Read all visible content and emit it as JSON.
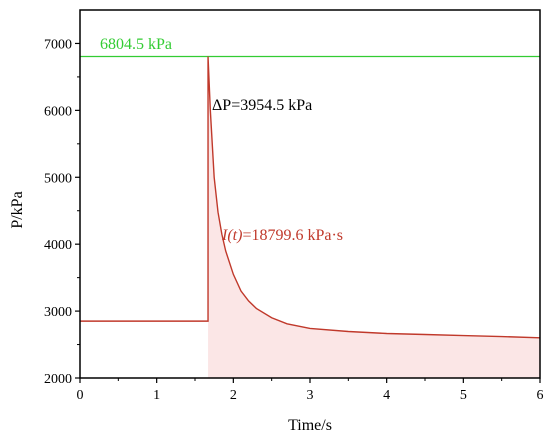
{
  "chart_data": {
    "type": "line",
    "xlabel": "Time/s",
    "ylabel": "P/kPa",
    "xlim": [
      0,
      6
    ],
    "ylim": [
      2000,
      7500
    ],
    "x_ticks": [
      0,
      1,
      2,
      3,
      4,
      5,
      6
    ],
    "y_ticks": [
      2000,
      3000,
      4000,
      5000,
      6000,
      7000
    ],
    "grid": false,
    "reference_line": {
      "y": 6804.5,
      "label": "6804.5 kPa",
      "color": "#33cc33"
    },
    "annotations": {
      "delta_p": "ΔP=3954.5 kPa",
      "impulse_prefix": "I(t)",
      "impulse_value": "=18799.6 kPa·s"
    },
    "series": [
      {
        "color": "#c0392b",
        "shade_color": "#f4b6b6",
        "x": [
          0,
          0.5,
          1.0,
          1.5,
          1.67,
          1.67,
          1.7,
          1.75,
          1.8,
          1.85,
          1.9,
          2.0,
          2.1,
          2.2,
          2.3,
          2.5,
          2.7,
          3.0,
          3.5,
          4.0,
          4.5,
          5.0,
          5.5,
          6.0
        ],
        "y": [
          2850,
          2850,
          2850,
          2850,
          2850,
          6804.5,
          6000,
          5000,
          4480,
          4150,
          3900,
          3550,
          3300,
          3150,
          3040,
          2900,
          2810,
          2740,
          2695,
          2665,
          2650,
          2635,
          2620,
          2600
        ]
      }
    ]
  }
}
